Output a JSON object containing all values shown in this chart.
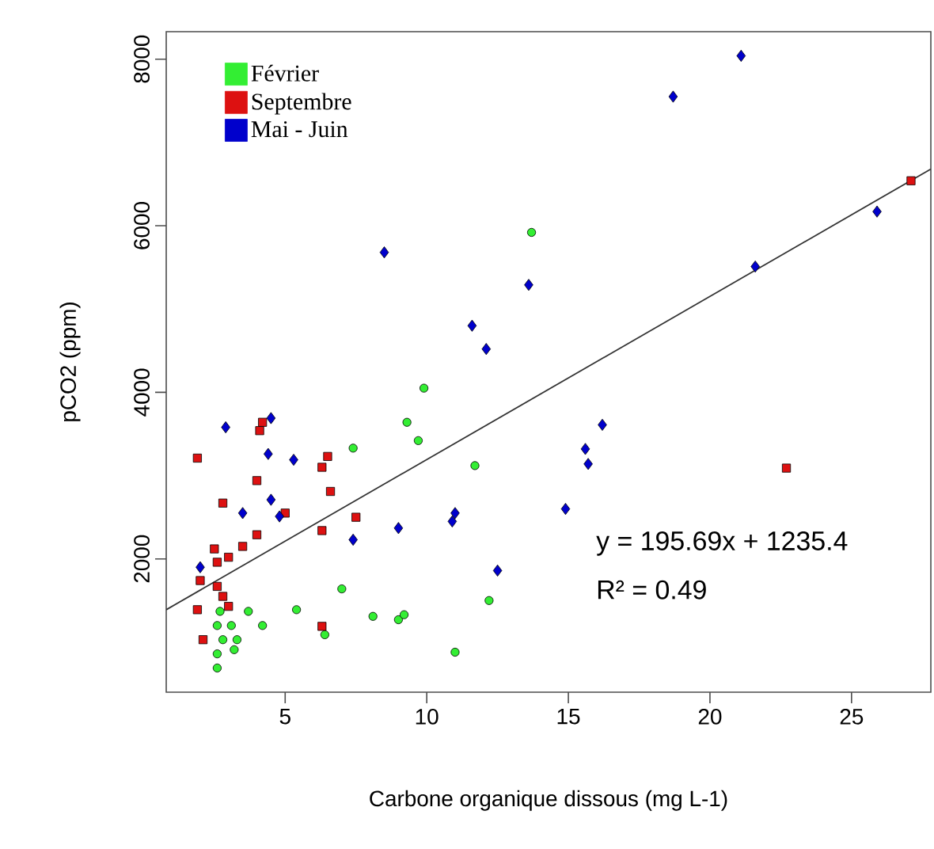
{
  "chart_data": {
    "type": "scatter",
    "xlabel": "Carbone organique dissous (mg L-1)",
    "ylabel": "pCO2 (ppm)",
    "xlim": [
      0.8,
      27.8
    ],
    "ylim": [
      400,
      8330
    ],
    "xticks": [
      5,
      10,
      15,
      20,
      25
    ],
    "yticks": [
      2000,
      4000,
      6000,
      8000
    ],
    "legend": "top left",
    "annotations": [
      "y = 195.69x + 1235.4",
      "R² = 0.49"
    ],
    "series": [
      {
        "name": "Février",
        "color": "#33ee33",
        "marker": "circle",
        "x": [
          9.3,
          7.4,
          7.0,
          5.4,
          3.7,
          2.7,
          8.1,
          9.0,
          9.2,
          4.2,
          3.1,
          2.6,
          6.4,
          3.3,
          2.8,
          3.2,
          2.6,
          2.6,
          13.7,
          9.9,
          9.7,
          11.7,
          12.2,
          11.0
        ],
        "values": [
          3640,
          3330,
          1640,
          1390,
          1370,
          1370,
          1310,
          1270,
          1330,
          1200,
          1200,
          1200,
          1090,
          1030,
          1030,
          910,
          860,
          690,
          5920,
          4050,
          3420,
          3120,
          1500,
          880
        ]
      },
      {
        "name": "Septembre",
        "color": "#dd1111",
        "marker": "square",
        "x": [
          1.9,
          4.2,
          4.1,
          4.0,
          6.5,
          6.3,
          6.6,
          2.8,
          5.0,
          4.0,
          7.5,
          6.3,
          3.5,
          2.5,
          3.0,
          2.6,
          2.0,
          2.6,
          2.8,
          3.0,
          1.9,
          2.1,
          6.3,
          27.1,
          22.7
        ],
        "values": [
          3210,
          3640,
          3540,
          2940,
          3230,
          3100,
          2810,
          2670,
          2550,
          2290,
          2500,
          2340,
          2150,
          2120,
          2020,
          1960,
          1740,
          1670,
          1550,
          1430,
          1390,
          1030,
          1190,
          6540,
          3090
        ]
      },
      {
        "name": "Mai - Juin",
        "color": "#0000cc",
        "marker": "diamond",
        "x": [
          2.9,
          4.5,
          4.4,
          5.3,
          4.5,
          3.5,
          4.8,
          7.4,
          9.0,
          2.0,
          8.5,
          13.6,
          11.6,
          12.1,
          16.2,
          15.6,
          15.7,
          14.9,
          11.0,
          10.9,
          12.5,
          18.7,
          21.1,
          21.6,
          25.9
        ],
        "values": [
          3580,
          3690,
          3260,
          3190,
          2710,
          2550,
          2510,
          2230,
          2370,
          1900,
          5680,
          5290,
          4800,
          4520,
          3610,
          3320,
          3140,
          2600,
          2550,
          2450,
          1860,
          7550,
          8040,
          5510,
          6170
        ]
      },
      {
        "type": "line",
        "color": "#333333",
        "x": [
          0.8,
          27.8
        ],
        "values": [
          1390,
          6680
        ]
      }
    ]
  }
}
